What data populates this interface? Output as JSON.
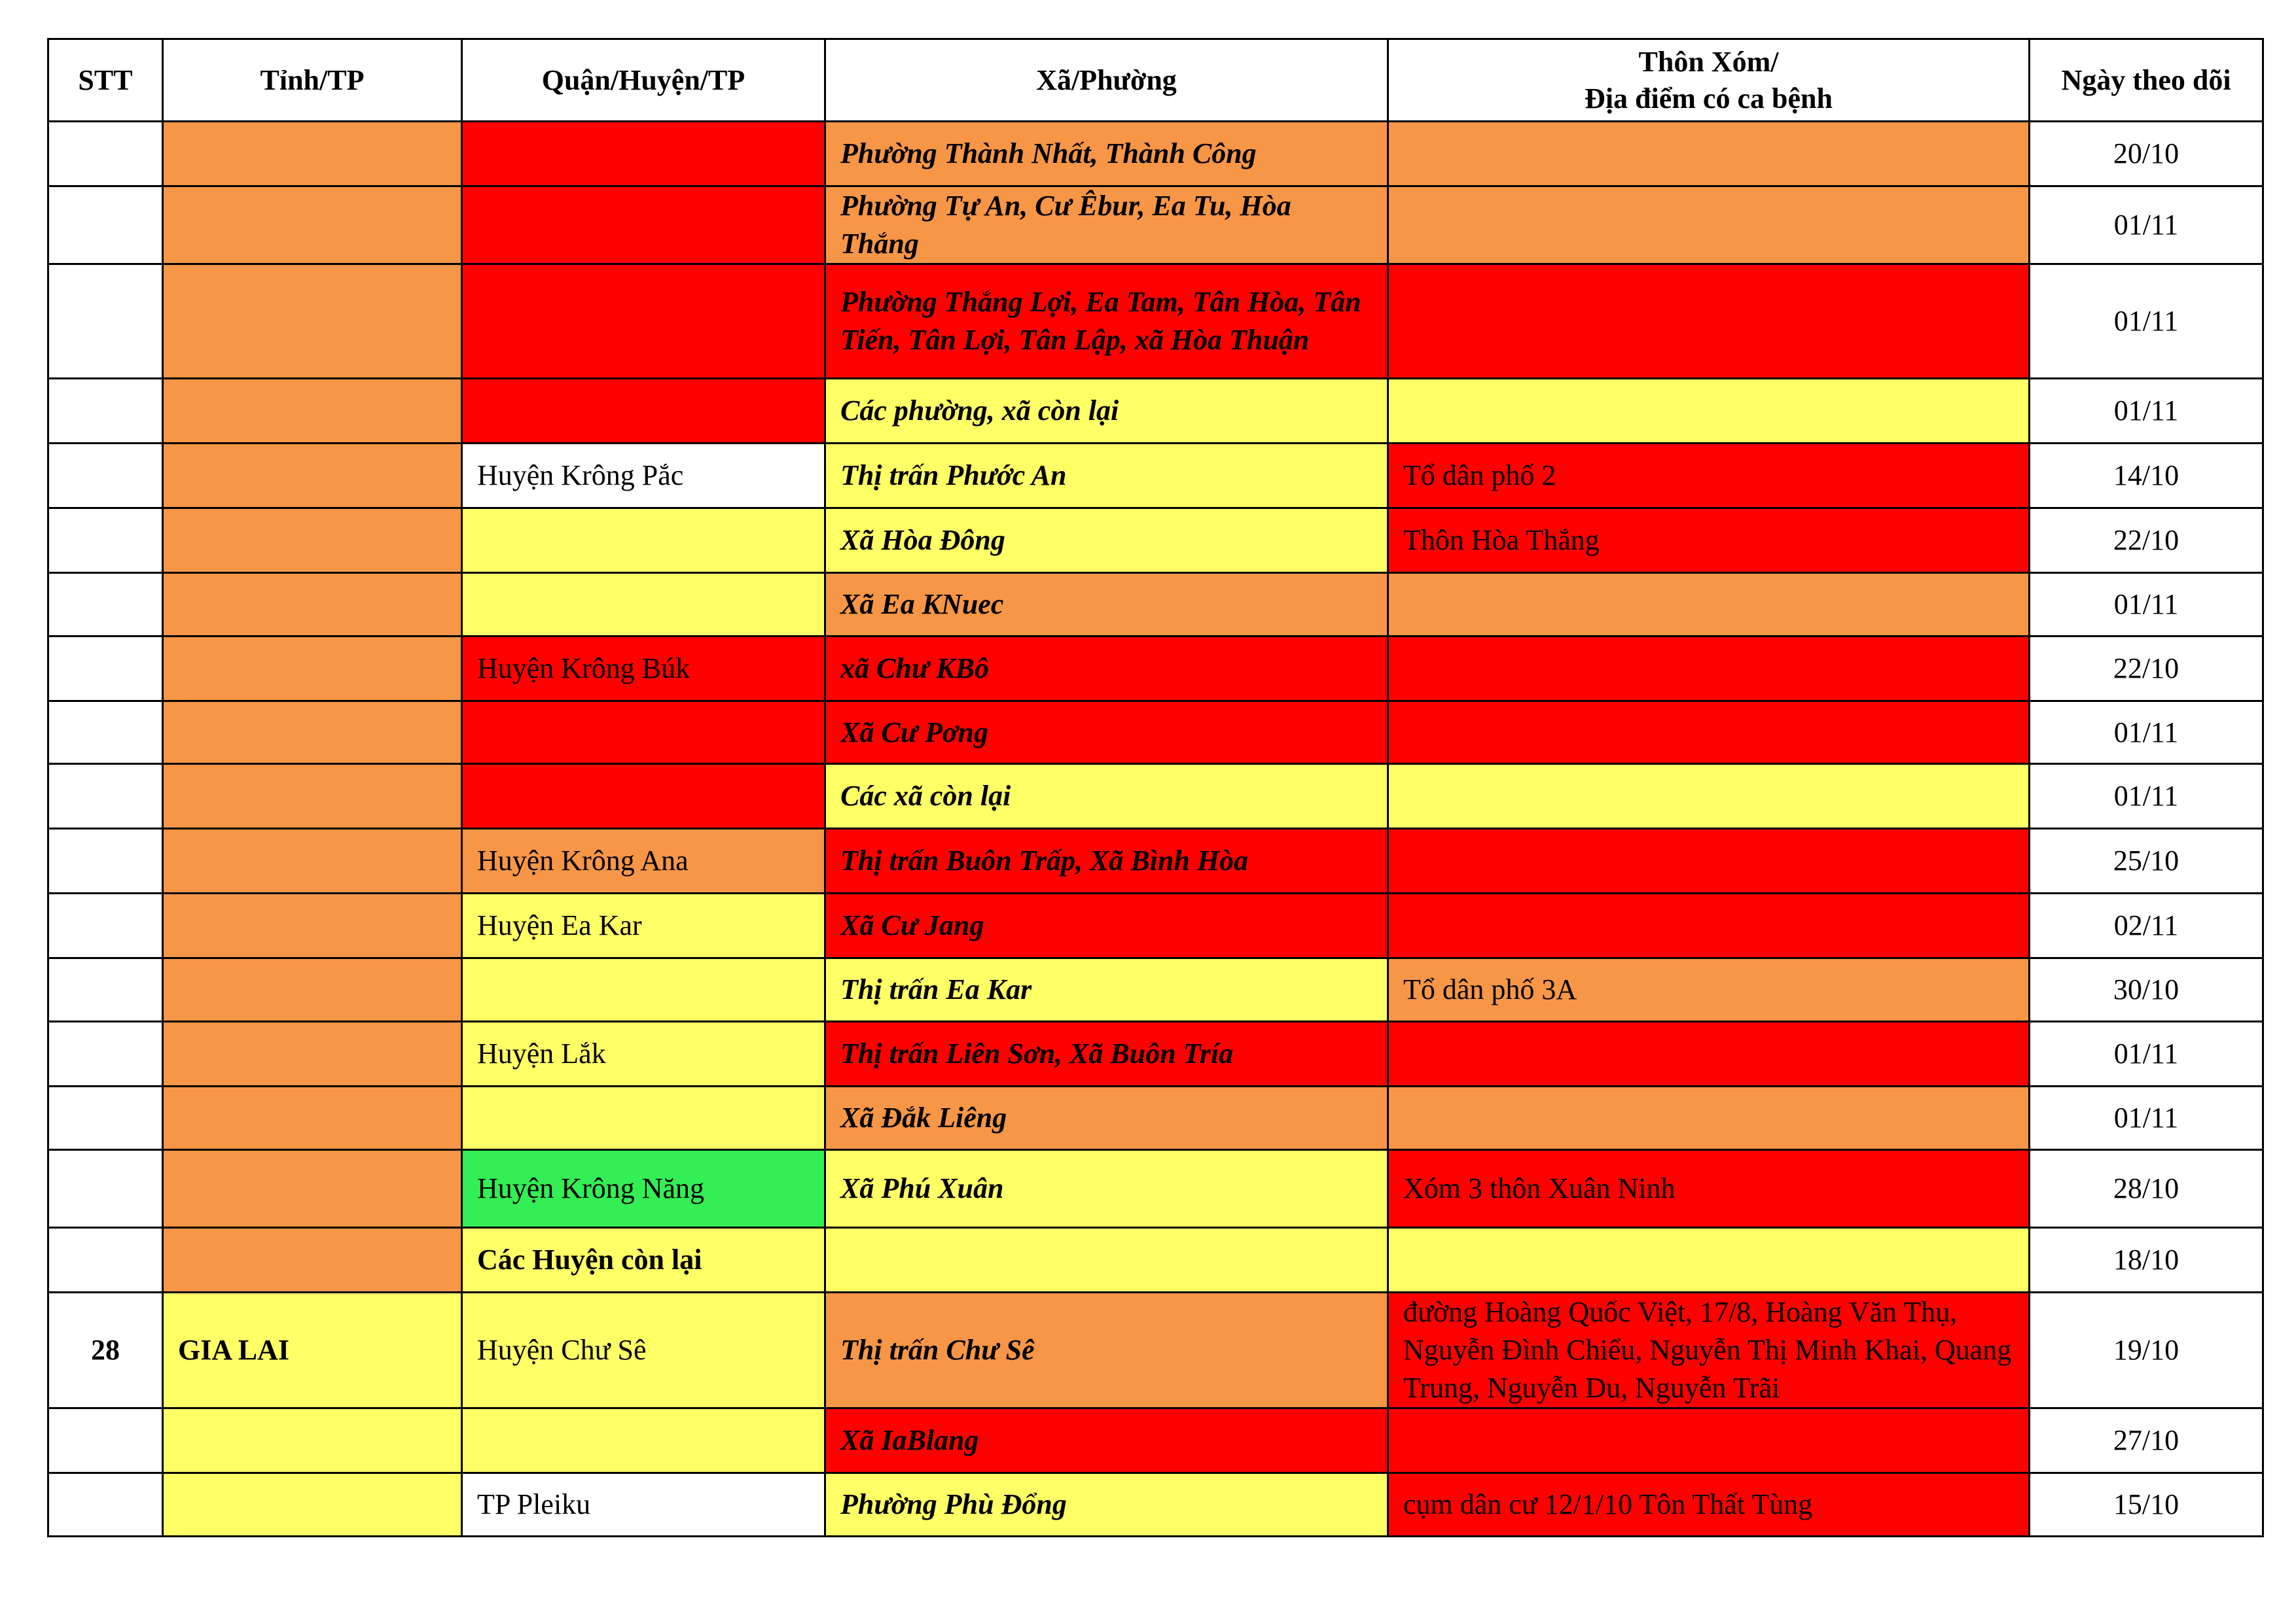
{
  "colors": {
    "O": "#F79646",
    "R": "#FF0000",
    "Y": "#FFFF66",
    "G": "#33EE55",
    "W": "#FFFFFF"
  },
  "headers": {
    "stt": "STT",
    "tinh": "Tỉnh/TP",
    "quan": "Quận/Huyện/TP",
    "xa": "Xã/Phường",
    "thon_line1": "Thôn Xóm/",
    "thon_line2": "Địa điểm có ca bệnh",
    "ngay": "Ngày theo dõi"
  },
  "rows": [
    {
      "stt": "",
      "tinh": "",
      "quan": "",
      "xa": "Phường Thành Nhất, Thành Công",
      "thon": "",
      "ngay": "20/10",
      "colors": [
        "O",
        "R",
        "O",
        "O"
      ]
    },
    {
      "stt": "",
      "tinh": "",
      "quan": "",
      "xa": "Phường Tự An, Cư Êbur, Ea Tu, Hòa Thắng",
      "thon": "",
      "ngay": "01/11",
      "colors": [
        "O",
        "R",
        "O",
        "O"
      ]
    },
    {
      "stt": "",
      "tinh": "",
      "quan": "",
      "xa": "Phường Thắng Lợi, Ea Tam, Tân Hòa, Tân Tiến, Tân Lợi, Tân Lập, xã Hòa Thuận",
      "thon": "",
      "ngay": "01/11",
      "colors": [
        "O",
        "R",
        "R",
        "R"
      ]
    },
    {
      "stt": "",
      "tinh": "",
      "quan": "",
      "xa": "Các phường, xã còn lại",
      "thon": "",
      "ngay": "01/11",
      "colors": [
        "O",
        "R",
        "Y",
        "Y"
      ]
    },
    {
      "stt": "",
      "tinh": "",
      "quan": "Huyện Krông Pắc",
      "xa": "Thị trấn Phước An",
      "thon": "Tổ dân phố 2",
      "ngay": "14/10",
      "colors": [
        "O",
        "W",
        "Y",
        "R"
      ]
    },
    {
      "stt": "",
      "tinh": "",
      "quan": "",
      "xa": "Xã Hòa Đông",
      "thon": "Thôn Hòa Thắng",
      "ngay": "22/10",
      "colors": [
        "O",
        "Y",
        "Y",
        "R"
      ]
    },
    {
      "stt": "",
      "tinh": "",
      "quan": "",
      "xa": "Xã Ea KNuec",
      "thon": "",
      "ngay": "01/11",
      "colors": [
        "O",
        "Y",
        "O",
        "O"
      ]
    },
    {
      "stt": "",
      "tinh": "",
      "quan": "Huyện Krông Búk",
      "xa": "xã Chư KBô",
      "thon": "",
      "ngay": "22/10",
      "colors": [
        "O",
        "R",
        "R",
        "R"
      ]
    },
    {
      "stt": "",
      "tinh": "",
      "quan": "",
      "xa": "Xã Cư Pơng",
      "thon": "",
      "ngay": "01/11",
      "colors": [
        "O",
        "R",
        "R",
        "R"
      ]
    },
    {
      "stt": "",
      "tinh": "",
      "quan": "",
      "xa": "Các xã còn lại",
      "thon": "",
      "ngay": "01/11",
      "colors": [
        "O",
        "R",
        "Y",
        "Y"
      ]
    },
    {
      "stt": "",
      "tinh": "",
      "quan": "Huyện Krông Ana",
      "xa": "Thị trấn Buôn Trấp, Xã Bình Hòa",
      "thon": "",
      "ngay": "25/10",
      "colors": [
        "O",
        "O",
        "R",
        "R"
      ]
    },
    {
      "stt": "",
      "tinh": "",
      "quan": "Huyện Ea Kar",
      "xa": "Xã Cư Jang",
      "thon": "",
      "ngay": "02/11",
      "colors": [
        "O",
        "Y",
        "R",
        "R"
      ]
    },
    {
      "stt": "",
      "tinh": "",
      "quan": "",
      "xa": "Thị trấn Ea Kar",
      "thon": "Tổ dân phố 3A",
      "ngay": "30/10",
      "colors": [
        "O",
        "Y",
        "Y",
        "O"
      ]
    },
    {
      "stt": "",
      "tinh": "",
      "quan": "Huyện Lắk",
      "xa": "Thị trấn Liên Sơn, Xã Buôn Tría",
      "thon": "",
      "ngay": "01/11",
      "colors": [
        "O",
        "Y",
        "R",
        "R"
      ]
    },
    {
      "stt": "",
      "tinh": "",
      "quan": "",
      "xa": "Xã Đắk Liêng",
      "thon": "",
      "ngay": "01/11",
      "colors": [
        "O",
        "Y",
        "O",
        "O"
      ]
    },
    {
      "stt": "",
      "tinh": "",
      "quan": "Huyện Krông Năng",
      "xa": "Xã Phú Xuân",
      "thon": "Xóm 3 thôn Xuân Ninh",
      "ngay": "28/10",
      "colors": [
        "O",
        "G",
        "Y",
        "R"
      ]
    },
    {
      "stt": "",
      "tinh": "",
      "quan": "Các Huyện còn lại",
      "quan_bold": true,
      "xa": "",
      "thon": "",
      "ngay": "18/10",
      "colors": [
        "O",
        "Y",
        "Y",
        "Y"
      ]
    },
    {
      "stt": "28",
      "tinh": "GIA LAI",
      "quan": "Huyện Chư Sê",
      "xa": "Thị trấn Chư Sê",
      "thon": "đường Hoàng Quốc Việt, 17/8, Hoàng Văn Thụ, Nguyễn Đình Chiểu, Nguyễn Thị Minh Khai, Quang Trung, Nguyễn Du, Nguyễn Trãi",
      "ngay": "19/10",
      "colors": [
        "Y",
        "Y",
        "O",
        "R"
      ]
    },
    {
      "stt": "",
      "tinh": "",
      "quan": "",
      "xa": "Xã IaBlang",
      "thon": "",
      "ngay": "27/10",
      "colors": [
        "Y",
        "Y",
        "R",
        "R"
      ]
    },
    {
      "stt": "",
      "tinh": "",
      "quan": "TP Pleiku",
      "xa": "Phường Phù Đổng",
      "thon": "cụm dân cư 12/1/10 Tôn Thất Tùng",
      "ngay": "15/10",
      "colors": [
        "Y",
        "W",
        "Y",
        "R"
      ]
    }
  ]
}
